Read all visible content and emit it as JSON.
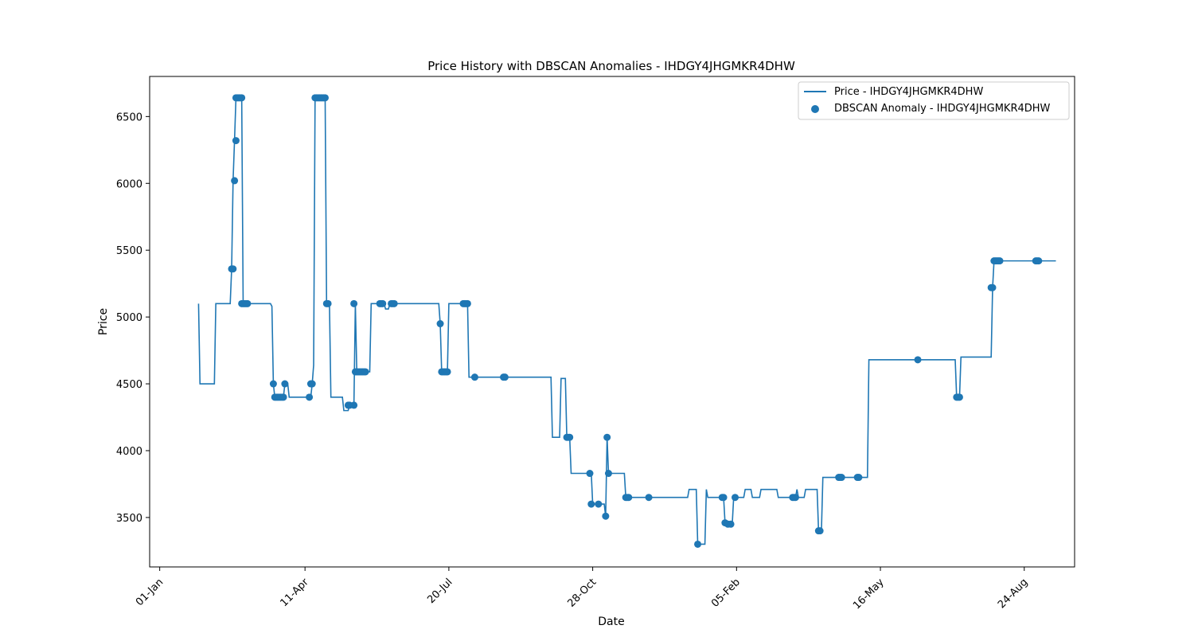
{
  "chart_data": {
    "type": "line",
    "title": "Price History with DBSCAN Anomalies - IHDGY4JHGMKR4DHW",
    "xlabel": "Date",
    "ylabel": "Price",
    "x_start": "2023-12-25",
    "x_end": "2025-09-28",
    "xlim": [
      "2023-12-25",
      "2025-09-28"
    ],
    "ylim": [
      3130,
      6800
    ],
    "x_ticks": [
      {
        "date": "2024-01-01",
        "label": "01-Jan"
      },
      {
        "date": "2024-04-11",
        "label": "11-Apr"
      },
      {
        "date": "2024-07-20",
        "label": "20-Jul"
      },
      {
        "date": "2024-10-28",
        "label": "28-Oct"
      },
      {
        "date": "2025-02-05",
        "label": "05-Feb"
      },
      {
        "date": "2025-05-16",
        "label": "16-May"
      },
      {
        "date": "2025-08-24",
        "label": "24-Aug"
      }
    ],
    "y_ticks": [
      3500,
      4000,
      4500,
      5000,
      5500,
      6000,
      6500
    ],
    "legend": {
      "position": "top-right",
      "items": [
        {
          "label": "Price - IHDGY4JHGMKR4DHW",
          "type": "line"
        },
        {
          "label": "DBSCAN Anomaly - IHDGY4JHGMKR4DHW",
          "type": "marker"
        }
      ]
    },
    "series": [
      {
        "name": "Price - IHDGY4JHGMKR4DHW",
        "type": "line",
        "color": "#1f77b4",
        "points": [
          [
            "2024-01-28",
            5100
          ],
          [
            "2024-01-29",
            4500
          ],
          [
            "2024-02-08",
            4500
          ],
          [
            "2024-02-09",
            5100
          ],
          [
            "2024-02-19",
            5100
          ],
          [
            "2024-02-20",
            5360
          ],
          [
            "2024-02-21",
            6020
          ],
          [
            "2024-02-22",
            6320
          ],
          [
            "2024-02-23",
            6640
          ],
          [
            "2024-02-27",
            6640
          ],
          [
            "2024-02-28",
            5100
          ],
          [
            "2024-03-04",
            5100
          ],
          [
            "2024-03-18",
            5100
          ],
          [
            "2024-03-19",
            5080
          ],
          [
            "2024-03-20",
            4500
          ],
          [
            "2024-03-21",
            4400
          ],
          [
            "2024-03-27",
            4400
          ],
          [
            "2024-03-28",
            4500
          ],
          [
            "2024-03-30",
            4500
          ],
          [
            "2024-03-31",
            4400
          ],
          [
            "2024-04-15",
            4400
          ],
          [
            "2024-04-16",
            4500
          ],
          [
            "2024-04-17",
            4640
          ],
          [
            "2024-04-18",
            6640
          ],
          [
            "2024-04-25",
            6640
          ],
          [
            "2024-04-26",
            5100
          ],
          [
            "2024-04-28",
            5100
          ],
          [
            "2024-04-29",
            4400
          ],
          [
            "2024-05-07",
            4400
          ],
          [
            "2024-05-08",
            4300
          ],
          [
            "2024-05-11",
            4300
          ],
          [
            "2024-05-12",
            4340
          ],
          [
            "2024-05-15",
            4340
          ],
          [
            "2024-05-16",
            5100
          ],
          [
            "2024-05-17",
            4590
          ],
          [
            "2024-05-26",
            4590
          ],
          [
            "2024-05-27",
            5100
          ],
          [
            "2024-06-05",
            5100
          ],
          [
            "2024-06-06",
            5060
          ],
          [
            "2024-06-08",
            5060
          ],
          [
            "2024-06-09",
            5100
          ],
          [
            "2024-07-13",
            5100
          ],
          [
            "2024-07-14",
            4950
          ],
          [
            "2024-07-15",
            4590
          ],
          [
            "2024-07-19",
            4590
          ],
          [
            "2024-07-20",
            5100
          ],
          [
            "2024-07-30",
            5100
          ],
          [
            "2024-07-31",
            5100
          ],
          [
            "2024-08-02",
            5100
          ],
          [
            "2024-08-03",
            4550
          ],
          [
            "2024-08-07",
            4550
          ],
          [
            "2024-08-27",
            4550
          ],
          [
            "2024-09-29",
            4550
          ],
          [
            "2024-09-30",
            4100
          ],
          [
            "2024-10-05",
            4100
          ],
          [
            "2024-10-06",
            4540
          ],
          [
            "2024-10-09",
            4540
          ],
          [
            "2024-10-10",
            4100
          ],
          [
            "2024-10-12",
            4100
          ],
          [
            "2024-10-13",
            3830
          ],
          [
            "2024-10-27",
            3830
          ],
          [
            "2024-10-28",
            3600
          ],
          [
            "2024-11-01",
            3600
          ],
          [
            "2024-11-05",
            3600
          ],
          [
            "2024-11-06",
            3510
          ],
          [
            "2024-11-07",
            4100
          ],
          [
            "2024-11-08",
            3830
          ],
          [
            "2024-11-19",
            3830
          ],
          [
            "2024-11-20",
            3650
          ],
          [
            "2024-11-24",
            3650
          ],
          [
            "2024-12-06",
            3650
          ],
          [
            "2025-01-02",
            3650
          ],
          [
            "2025-01-03",
            3710
          ],
          [
            "2025-01-08",
            3710
          ],
          [
            "2025-01-09",
            3300
          ],
          [
            "2025-01-14",
            3300
          ],
          [
            "2025-01-15",
            3710
          ],
          [
            "2025-01-16",
            3650
          ],
          [
            "2025-01-26",
            3650
          ],
          [
            "2025-01-27",
            3650
          ],
          [
            "2025-01-28",
            3460
          ],
          [
            "2025-01-30",
            3450
          ],
          [
            "2025-02-01",
            3450
          ],
          [
            "2025-02-02",
            3450
          ],
          [
            "2025-02-03",
            3650
          ],
          [
            "2025-02-10",
            3650
          ],
          [
            "2025-02-11",
            3710
          ],
          [
            "2025-02-15",
            3710
          ],
          [
            "2025-02-16",
            3650
          ],
          [
            "2025-02-21",
            3650
          ],
          [
            "2025-02-22",
            3710
          ],
          [
            "2025-03-05",
            3710
          ],
          [
            "2025-03-06",
            3650
          ],
          [
            "2025-03-16",
            3650
          ],
          [
            "2025-03-18",
            3650
          ],
          [
            "2025-03-19",
            3710
          ],
          [
            "2025-03-20",
            3650
          ],
          [
            "2025-03-24",
            3650
          ],
          [
            "2025-03-25",
            3710
          ],
          [
            "2025-04-02",
            3710
          ],
          [
            "2025-04-03",
            3400
          ],
          [
            "2025-04-05",
            3400
          ],
          [
            "2025-04-06",
            3800
          ],
          [
            "2025-04-17",
            3800
          ],
          [
            "2025-04-19",
            3800
          ],
          [
            "2025-04-30",
            3800
          ],
          [
            "2025-05-01",
            3800
          ],
          [
            "2025-05-07",
            3800
          ],
          [
            "2025-05-08",
            4680
          ],
          [
            "2025-06-11",
            4680
          ],
          [
            "2025-07-07",
            4680
          ],
          [
            "2025-07-08",
            4400
          ],
          [
            "2025-07-10",
            4400
          ],
          [
            "2025-07-11",
            4700
          ],
          [
            "2025-08-01",
            4700
          ],
          [
            "2025-08-02",
            5220
          ],
          [
            "2025-08-03",
            5420
          ],
          [
            "2025-08-07",
            5420
          ],
          [
            "2025-09-01",
            5420
          ],
          [
            "2025-09-02",
            5420
          ],
          [
            "2025-09-15",
            5420
          ]
        ]
      },
      {
        "name": "DBSCAN Anomaly - IHDGY4JHGMKR4DHW",
        "type": "scatter",
        "color": "#1f77b4",
        "points": [
          [
            "2024-02-20",
            5360
          ],
          [
            "2024-02-21",
            5360
          ],
          [
            "2024-02-22",
            6020
          ],
          [
            "2024-02-23",
            6320
          ],
          [
            "2024-02-23",
            6640
          ],
          [
            "2024-02-24",
            6640
          ],
          [
            "2024-02-25",
            6640
          ],
          [
            "2024-02-26",
            6640
          ],
          [
            "2024-02-27",
            6640
          ],
          [
            "2024-02-27",
            5100
          ],
          [
            "2024-02-28",
            5100
          ],
          [
            "2024-02-29",
            5100
          ],
          [
            "2024-03-01",
            5100
          ],
          [
            "2024-03-02",
            5100
          ],
          [
            "2024-03-20",
            4500
          ],
          [
            "2024-03-21",
            4400
          ],
          [
            "2024-03-22",
            4400
          ],
          [
            "2024-03-23",
            4400
          ],
          [
            "2024-03-24",
            4400
          ],
          [
            "2024-03-25",
            4400
          ],
          [
            "2024-03-26",
            4400
          ],
          [
            "2024-03-27",
            4400
          ],
          [
            "2024-03-28",
            4500
          ],
          [
            "2024-04-14",
            4400
          ],
          [
            "2024-04-15",
            4500
          ],
          [
            "2024-04-16",
            4500
          ],
          [
            "2024-04-18",
            6640
          ],
          [
            "2024-04-19",
            6640
          ],
          [
            "2024-04-20",
            6640
          ],
          [
            "2024-04-21",
            6640
          ],
          [
            "2024-04-22",
            6640
          ],
          [
            "2024-04-23",
            6640
          ],
          [
            "2024-04-24",
            6640
          ],
          [
            "2024-04-25",
            6640
          ],
          [
            "2024-04-26",
            5100
          ],
          [
            "2024-04-27",
            5100
          ],
          [
            "2024-05-11",
            4340
          ],
          [
            "2024-05-12",
            4340
          ],
          [
            "2024-05-15",
            4340
          ],
          [
            "2024-05-15",
            5100
          ],
          [
            "2024-05-16",
            4590
          ],
          [
            "2024-05-17",
            4590
          ],
          [
            "2024-05-18",
            4590
          ],
          [
            "2024-05-19",
            4590
          ],
          [
            "2024-05-20",
            4590
          ],
          [
            "2024-05-21",
            4590
          ],
          [
            "2024-05-22",
            4590
          ],
          [
            "2024-05-23",
            4590
          ],
          [
            "2024-06-02",
            5100
          ],
          [
            "2024-06-03",
            5100
          ],
          [
            "2024-06-04",
            5100
          ],
          [
            "2024-06-10",
            5100
          ],
          [
            "2024-06-11",
            5100
          ],
          [
            "2024-06-12",
            5100
          ],
          [
            "2024-07-14",
            4950
          ],
          [
            "2024-07-15",
            4590
          ],
          [
            "2024-07-16",
            4590
          ],
          [
            "2024-07-17",
            4590
          ],
          [
            "2024-07-18",
            4590
          ],
          [
            "2024-07-19",
            4590
          ],
          [
            "2024-07-30",
            5100
          ],
          [
            "2024-07-31",
            5100
          ],
          [
            "2024-08-01",
            5100
          ],
          [
            "2024-08-02",
            5100
          ],
          [
            "2024-08-07",
            4550
          ],
          [
            "2024-08-27",
            4550
          ],
          [
            "2024-08-28",
            4550
          ],
          [
            "2024-10-10",
            4100
          ],
          [
            "2024-10-11",
            4100
          ],
          [
            "2024-10-12",
            4100
          ],
          [
            "2024-10-26",
            3830
          ],
          [
            "2024-10-27",
            3600
          ],
          [
            "2024-11-01",
            3600
          ],
          [
            "2024-11-06",
            3510
          ],
          [
            "2024-11-07",
            4100
          ],
          [
            "2024-11-08",
            3830
          ],
          [
            "2024-11-20",
            3650
          ],
          [
            "2024-11-21",
            3650
          ],
          [
            "2024-11-22",
            3650
          ],
          [
            "2024-12-06",
            3650
          ],
          [
            "2025-01-09",
            3300
          ],
          [
            "2025-01-26",
            3650
          ],
          [
            "2025-01-27",
            3650
          ],
          [
            "2025-01-28",
            3460
          ],
          [
            "2025-01-30",
            3450
          ],
          [
            "2025-02-01",
            3450
          ],
          [
            "2025-02-04",
            3650
          ],
          [
            "2025-03-16",
            3650
          ],
          [
            "2025-03-17",
            3650
          ],
          [
            "2025-03-18",
            3650
          ],
          [
            "2025-04-03",
            3400
          ],
          [
            "2025-04-04",
            3400
          ],
          [
            "2025-04-17",
            3800
          ],
          [
            "2025-04-18",
            3800
          ],
          [
            "2025-04-19",
            3800
          ],
          [
            "2025-04-30",
            3800
          ],
          [
            "2025-05-01",
            3800
          ],
          [
            "2025-06-11",
            4680
          ],
          [
            "2025-07-08",
            4400
          ],
          [
            "2025-07-09",
            4400
          ],
          [
            "2025-07-10",
            4400
          ],
          [
            "2025-08-01",
            5220
          ],
          [
            "2025-08-02",
            5220
          ],
          [
            "2025-08-03",
            5420
          ],
          [
            "2025-08-04",
            5420
          ],
          [
            "2025-08-05",
            5420
          ],
          [
            "2025-08-06",
            5420
          ],
          [
            "2025-08-07",
            5420
          ],
          [
            "2025-09-01",
            5420
          ],
          [
            "2025-09-02",
            5420
          ],
          [
            "2025-09-03",
            5420
          ]
        ]
      }
    ]
  }
}
